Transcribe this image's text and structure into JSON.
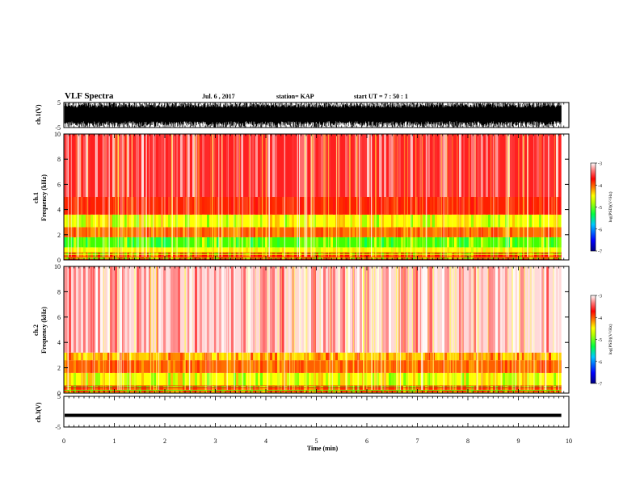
{
  "header": {
    "title": "VLF Spectra",
    "date": "Jul. 6 , 2017",
    "station": "station= KAP",
    "start_ut": "start UT = 7 : 50 : 1"
  },
  "chart_data": [
    {
      "type": "line",
      "panel": "ch1-waveform",
      "ylabel": "ch.1(V)",
      "ylim": [
        -5,
        5
      ],
      "yticks": [
        "5",
        "-5"
      ],
      "xlim": [
        0,
        10
      ],
      "data_extent_min": 9.85,
      "description_series": "dense broadband waveform, amplitude roughly -5 to 5 V",
      "colors": {
        "trace": "#000000"
      }
    },
    {
      "type": "heatmap",
      "panel": "ch1-spectrogram",
      "ylabel": "ch.1\nFrequency (kHz)",
      "ylim": [
        0,
        10
      ],
      "yticks": [
        "0",
        "2",
        "4",
        "6",
        "8",
        "10"
      ],
      "xlim": [
        0,
        10
      ],
      "data_extent_min": 9.85,
      "bands_khz": [
        {
          "from": 0.0,
          "to": 0.6,
          "level": "mixed-lines"
        },
        {
          "from": 0.6,
          "to": 1.0,
          "level": "yellow"
        },
        {
          "from": 1.0,
          "to": 1.8,
          "level": "green-yellow"
        },
        {
          "from": 1.8,
          "to": 2.6,
          "level": "orange"
        },
        {
          "from": 2.6,
          "to": 3.6,
          "level": "yellow-green"
        },
        {
          "from": 3.6,
          "to": 5.0,
          "level": "red"
        },
        {
          "from": 5.0,
          "to": 10.0,
          "level": "red-white"
        }
      ],
      "colorbar": {
        "label": "log(PSD)(V²/Hz)",
        "ticks": [
          "-3",
          "-4",
          "-5",
          "-6",
          "-7"
        ],
        "range": [
          -7,
          -3
        ]
      }
    },
    {
      "type": "heatmap",
      "panel": "ch2-spectrogram",
      "ylabel": "ch.2\nFrequency (kHz)",
      "ylim": [
        0,
        10
      ],
      "yticks": [
        "0",
        "2",
        "4",
        "6",
        "8",
        "10"
      ],
      "xlim": [
        0,
        10
      ],
      "data_extent_min": 9.85,
      "bands_khz": [
        {
          "from": 0.0,
          "to": 0.6,
          "level": "mixed-lines"
        },
        {
          "from": 0.6,
          "to": 1.6,
          "level": "yellow-green"
        },
        {
          "from": 1.6,
          "to": 2.6,
          "level": "orange"
        },
        {
          "from": 2.6,
          "to": 3.2,
          "level": "yellow-red"
        },
        {
          "from": 3.2,
          "to": 10.0,
          "level": "white-red"
        }
      ],
      "colorbar": {
        "label": "log(PSD)(V²/Hz)",
        "ticks": [
          "-3",
          "-4",
          "-5",
          "-6",
          "-7"
        ],
        "range": [
          -7,
          -3
        ]
      }
    },
    {
      "type": "line",
      "panel": "ch3-waveform",
      "ylabel": "ch.3(V)",
      "ylim": [
        -5,
        5
      ],
      "yticks": [
        "5",
        "-5"
      ],
      "xlim": [
        0,
        10
      ],
      "data_extent_min": 9.85,
      "flat_value": -1.2,
      "colors": {
        "trace": "#000000"
      }
    }
  ],
  "xaxis": {
    "label": "Time (min)",
    "ticks": [
      "0",
      "1",
      "2",
      "3",
      "4",
      "5",
      "6",
      "7",
      "8",
      "9",
      "10"
    ]
  },
  "colormap": {
    "stops": [
      "#00007f",
      "#0000ff",
      "#00c8ff",
      "#00ff50",
      "#50ff00",
      "#ffff00",
      "#ff9000",
      "#ff2000",
      "#ff0000",
      "#ffffff"
    ]
  }
}
